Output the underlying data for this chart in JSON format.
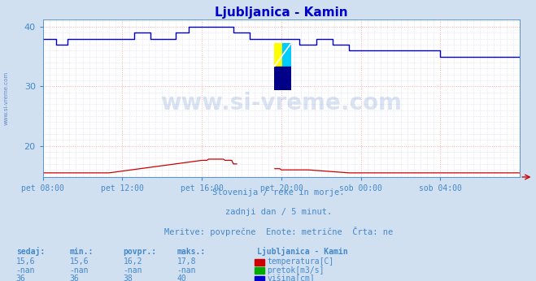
{
  "title": "Ljubljanica - Kamin",
  "bg_color": "#d0e0f0",
  "plot_bg_color": "#ffffff",
  "grid_color_major": "#ffaaaa",
  "grid_color_minor": "#ccccee",
  "title_color": "#0000cc",
  "tick_color": "#4488cc",
  "watermark": "www.si-vreme.com",
  "watermark_color": "#3366bb",
  "watermark_alpha": 0.18,
  "subtitle1": "Slovenija / reke in morje.",
  "subtitle2": "zadnji dan / 5 minut.",
  "subtitle3": "Meritve: povprečne  Enote: metrične  Črta: ne",
  "subtitle_color": "#4488cc",
  "yticks": [
    20,
    30,
    40
  ],
  "xtick_labels": [
    "pet 08:00",
    "pet 12:00",
    "pet 16:00",
    "pet 20:00",
    "sob 00:00",
    "sob 04:00"
  ],
  "xtick_positions": [
    0,
    48,
    96,
    144,
    192,
    240
  ],
  "total_points": 289,
  "temp_color": "#cc0000",
  "flow_color": "#00aa00",
  "height_color": "#0000cc",
  "legend_title": "Ljubljanica - Kamin",
  "table_headers": [
    "sedaj:",
    "min.:",
    "povpr.:",
    "maks.:"
  ],
  "table_rows": [
    {
      "values": [
        "15,6",
        "15,6",
        "16,2",
        "17,8"
      ],
      "label": "temperatura[C]",
      "color": "#cc0000"
    },
    {
      "values": [
        "-nan",
        "-nan",
        "-nan",
        "-nan"
      ],
      "label": "pretok[m3/s]",
      "color": "#00aa00"
    },
    {
      "values": [
        "36",
        "36",
        "38",
        "40"
      ],
      "label": "višina[cm]",
      "color": "#0000cc"
    }
  ]
}
